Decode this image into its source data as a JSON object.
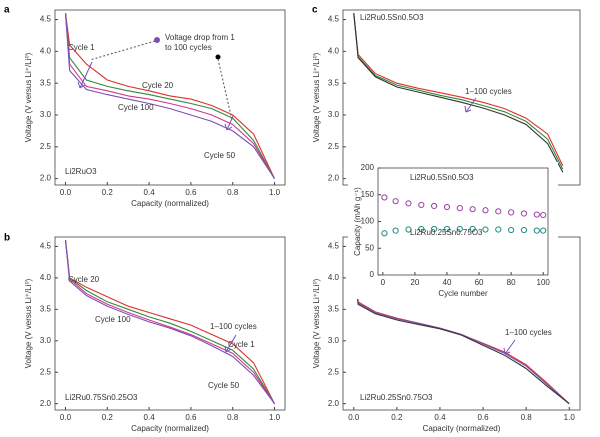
{
  "chart_data": [
    {
      "type": "line",
      "panel": "a",
      "formula": "Li2RuO3",
      "xlabel": "Capacity (normalized)",
      "ylabel": "Voltage (V versus Li⁺/Li⁰)",
      "x": [
        0,
        0.02,
        0.1,
        0.2,
        0.3,
        0.4,
        0.5,
        0.6,
        0.7,
        0.8,
        0.9,
        1.0
      ],
      "series": [
        {
          "name": "Cycle 1",
          "color": "#e03030",
          "values": [
            4.6,
            4.1,
            3.8,
            3.55,
            3.45,
            3.38,
            3.3,
            3.25,
            3.15,
            3.0,
            2.7,
            2.0
          ]
        },
        {
          "name": "Cycle 20",
          "color": "#2e8b3a",
          "values": [
            4.6,
            3.9,
            3.55,
            3.45,
            3.38,
            3.32,
            3.25,
            3.18,
            3.1,
            2.95,
            2.6,
            2.0
          ]
        },
        {
          "name": "Cycle 50",
          "color": "#d4358f",
          "values": [
            4.6,
            3.8,
            3.45,
            3.38,
            3.3,
            3.25,
            3.18,
            3.1,
            3.0,
            2.85,
            2.55,
            2.0
          ]
        },
        {
          "name": "Cycle 100",
          "color": "#7b4fb5",
          "values": [
            4.6,
            3.7,
            3.4,
            3.32,
            3.25,
            3.18,
            3.1,
            3.0,
            2.9,
            2.75,
            2.5,
            2.0
          ]
        }
      ],
      "annotations": [
        "Voltage drop from 1",
        "to 100 cycles"
      ],
      "xlim": [
        -0.05,
        1.05
      ],
      "ylim": [
        1.9,
        4.65
      ],
      "xticks": [
        {
          "value": 0,
          "label": "0.0"
        },
        {
          "value": 0.2,
          "label": "0.2"
        },
        {
          "value": 0.4,
          "label": "0.4"
        },
        {
          "value": 0.6,
          "label": "0.6"
        },
        {
          "value": 0.8,
          "label": "0.8"
        },
        {
          "value": 1,
          "label": "1.0"
        }
      ],
      "yticks": [
        {
          "value": 2,
          "label": "2.0"
        },
        2.5,
        {
          "value": 3,
          "label": "3.0"
        },
        3.5,
        {
          "value": 4,
          "label": "4.0"
        },
        4.5
      ]
    },
    {
      "type": "line",
      "panel": "b",
      "formula": "Li2Ru0.75Sn0.25O3",
      "xlabel": "Capacity (normalized)",
      "ylabel": "Voltage (V versus Li⁺/Li⁰)",
      "x": [
        0,
        0.02,
        0.1,
        0.2,
        0.3,
        0.4,
        0.5,
        0.6,
        0.7,
        0.8,
        0.9,
        1.0
      ],
      "series": [
        {
          "name": "Cycle 1",
          "color": "#e03030",
          "values": [
            4.6,
            4.0,
            3.85,
            3.7,
            3.55,
            3.45,
            3.35,
            3.25,
            3.1,
            2.95,
            2.65,
            2.0
          ]
        },
        {
          "name": "Cycle 20",
          "color": "#2e8b3a",
          "values": [
            4.6,
            4.0,
            3.8,
            3.62,
            3.5,
            3.38,
            3.28,
            3.15,
            3.0,
            2.85,
            2.55,
            2.0
          ]
        },
        {
          "name": "Cycle 50",
          "color": "#d4358f",
          "values": [
            4.6,
            3.98,
            3.75,
            3.58,
            3.45,
            3.33,
            3.22,
            3.1,
            2.95,
            2.8,
            2.5,
            2.0
          ]
        },
        {
          "name": "Cycle 100",
          "color": "#7b4fb5",
          "values": [
            4.6,
            3.95,
            3.72,
            3.55,
            3.42,
            3.3,
            3.2,
            3.08,
            2.92,
            2.75,
            2.45,
            2.0
          ]
        }
      ],
      "annotations": [
        "1–100 cycles"
      ],
      "xlim": [
        -0.05,
        1.05
      ],
      "ylim": [
        1.9,
        4.65
      ],
      "xticks": [
        {
          "value": 0,
          "label": "0.0"
        },
        {
          "value": 0.2,
          "label": "0.2"
        },
        {
          "value": 0.4,
          "label": "0.4"
        },
        {
          "value": 0.6,
          "label": "0.6"
        },
        {
          "value": 0.8,
          "label": "0.8"
        },
        {
          "value": 1,
          "label": "1.0"
        }
      ],
      "yticks": [
        {
          "value": 2,
          "label": "2.0"
        },
        2.5,
        {
          "value": 3,
          "label": "3.0"
        },
        3.5,
        {
          "value": 4,
          "label": "4.0"
        },
        4.5
      ]
    },
    {
      "type": "line",
      "panel": "c",
      "formula": "Li2Ru0.5Sn0.5O3",
      "ylabel": "Voltage (V versus Li⁺/Li⁰)",
      "x": [
        0,
        0.02,
        0.1,
        0.2,
        0.3,
        0.4,
        0.5,
        0.6,
        0.7,
        0.8,
        0.9,
        0.97
      ],
      "series": [
        {
          "color": "#e03030",
          "values": [
            4.6,
            3.95,
            3.65,
            3.5,
            3.42,
            3.35,
            3.28,
            3.2,
            3.1,
            2.95,
            2.7,
            2.2
          ]
        },
        {
          "color": "#2e8b3a",
          "values": [
            4.6,
            3.92,
            3.62,
            3.47,
            3.39,
            3.31,
            3.24,
            3.15,
            3.05,
            2.9,
            2.62,
            2.15
          ]
        },
        {
          "color": "#333333",
          "values": [
            4.6,
            3.9,
            3.6,
            3.44,
            3.36,
            3.28,
            3.2,
            3.11,
            3.0,
            2.85,
            2.55,
            2.1
          ]
        }
      ],
      "annotations": [
        "1–100 cycles"
      ],
      "xlim": [
        -0.05,
        1.05
      ],
      "ylim": [
        1.9,
        4.65
      ],
      "yticks": [
        {
          "value": 2,
          "label": "2.0"
        },
        2.5,
        {
          "value": 3,
          "label": "3.0"
        },
        3.5,
        {
          "value": 4,
          "label": "4.0"
        },
        4.5
      ]
    },
    {
      "type": "line",
      "formula": "Li2Ru0.25Sn0.75O3",
      "xlabel": "Capacity (normalized)",
      "ylabel": "Voltage (V versus Li⁺/Li⁰)",
      "x": [
        0,
        0.02,
        0.1,
        0.2,
        0.3,
        0.4,
        0.5,
        0.6,
        0.7,
        0.8,
        0.9,
        1.0
      ],
      "series": [
        {
          "color": "#e03030",
          "values": [
            4.6,
            3.62,
            3.46,
            3.36,
            3.28,
            3.2,
            3.1,
            2.96,
            2.82,
            2.62,
            2.32,
            2.0
          ]
        },
        {
          "color": "#7b4fb5",
          "values": [
            4.6,
            3.6,
            3.45,
            3.35,
            3.28,
            3.2,
            3.1,
            2.95,
            2.8,
            2.6,
            2.3,
            2.0
          ]
        },
        {
          "color": "#333333",
          "values": [
            4.6,
            3.58,
            3.43,
            3.33,
            3.26,
            3.19,
            3.09,
            2.93,
            2.77,
            2.56,
            2.27,
            2.0
          ]
        }
      ],
      "annotations": [
        "1–100 cycles"
      ],
      "xlim": [
        -0.05,
        1.05
      ],
      "ylim": [
        1.9,
        4.65
      ],
      "xticks": [
        {
          "value": 0,
          "label": "0.0"
        },
        {
          "value": 0.2,
          "label": "0.2"
        },
        {
          "value": 0.4,
          "label": "0.4"
        },
        {
          "value": 0.6,
          "label": "0.6"
        },
        {
          "value": 0.8,
          "label": "0.8"
        },
        {
          "value": 1,
          "label": "1.0"
        }
      ],
      "yticks": [
        {
          "value": 2,
          "label": "2.0"
        },
        2.5,
        {
          "value": 3,
          "label": "3.0"
        },
        3.5,
        {
          "value": 4,
          "label": "4.0"
        },
        4.5
      ]
    },
    {
      "type": "scatter",
      "xlabel": "Cycle number",
      "ylabel": "Capacity (mAh g⁻¹)",
      "x": [
        1,
        8,
        16,
        24,
        32,
        40,
        48,
        56,
        64,
        72,
        80,
        88,
        96,
        100
      ],
      "series": [
        {
          "name": "Li2Ru0.5Sn0.5O3",
          "color": "#9b3fa6",
          "values": [
            145,
            138,
            134,
            131,
            129,
            127,
            125,
            123,
            121,
            119,
            117,
            115,
            113,
            112
          ]
        },
        {
          "name": "Li2Ru0.25Sn0.75O3",
          "color": "#1f8a80",
          "values": [
            78,
            83,
            85,
            86,
            86,
            86,
            86,
            86,
            85,
            85,
            84,
            84,
            83,
            83
          ]
        }
      ],
      "xlim": [
        -3,
        103
      ],
      "ylim": [
        0,
        200
      ],
      "xticks": [
        0,
        20,
        40,
        60,
        80,
        100
      ],
      "yticks": [
        0,
        50,
        100,
        150,
        200
      ]
    }
  ]
}
